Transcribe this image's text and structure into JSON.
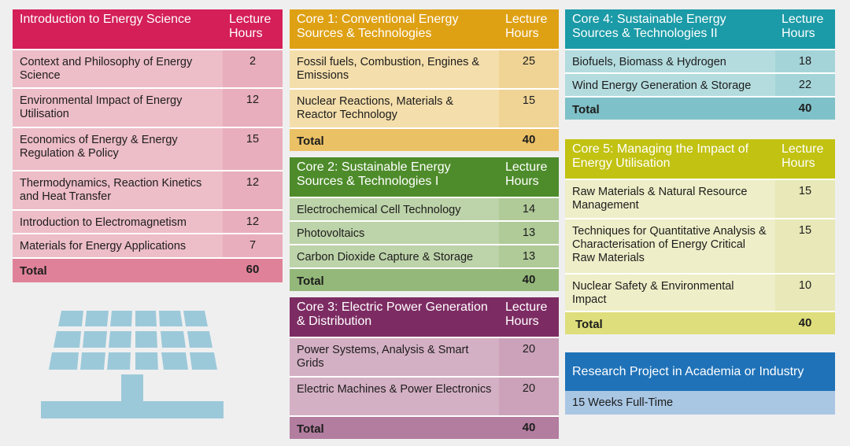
{
  "colors": {
    "intro": "#d41f59",
    "core1": "#dfa114",
    "core2": "#4e8c2b",
    "core3": "#7d2c63",
    "core4": "#1b9ba7",
    "core5": "#c2c212",
    "research": "#1f72b8"
  },
  "intro": {
    "title": "Introduction to Energy Science",
    "hours_label": "Lecture Hours",
    "rows": [
      {
        "name": "Context and Philosophy of Energy Science",
        "hours": "2"
      },
      {
        "name": "Environmental Impact of Energy Utilisation",
        "hours": "12"
      },
      {
        "name": "Economics of Energy & Energy Regulation & Policy",
        "hours": "15"
      },
      {
        "name": "Thermodynamics, Reaction Kinetics and Heat Transfer",
        "hours": "12"
      },
      {
        "name": "Introduction to Electromagnetism",
        "hours": "12"
      },
      {
        "name": "Materials for Energy Applications",
        "hours": "7"
      }
    ],
    "total_label": "Total",
    "total": "60"
  },
  "core1": {
    "title": "Core 1: Conventional Energy Sources & Technologies",
    "hours_label": "Lecture Hours",
    "rows": [
      {
        "name": "Fossil fuels, Combustion, Engines & Emissions",
        "hours": "25"
      },
      {
        "name": "Nuclear Reactions, Materials & Reactor Technology",
        "hours": "15"
      }
    ],
    "total_label": "Total",
    "total": "40"
  },
  "core2": {
    "title": "Core 2: Sustainable Energy Sources & Technologies I",
    "hours_label": "Lecture Hours",
    "rows": [
      {
        "name": "Electrochemical Cell Technology",
        "hours": "14"
      },
      {
        "name": "Photovoltaics",
        "hours": "13"
      },
      {
        "name": "Carbon Dioxide Capture & Storage",
        "hours": "13"
      }
    ],
    "total_label": "Total",
    "total": "40"
  },
  "core3": {
    "title": "Core 3: Electric Power Generation & Distribution",
    "hours_label": "Lecture Hours",
    "rows": [
      {
        "name": "Power Systems, Analysis & Smart Grids",
        "hours": "20"
      },
      {
        "name": "Electric Machines & Power Electronics",
        "hours": "20"
      }
    ],
    "total_label": "Total",
    "total": "40"
  },
  "core4": {
    "title": "Core 4: Sustainable Energy Sources & Technologies II",
    "hours_label": "Lecture Hours",
    "rows": [
      {
        "name": "Biofuels, Biomass & Hydrogen",
        "hours": "18"
      },
      {
        "name": "Wind Energy Generation & Storage",
        "hours": "22"
      }
    ],
    "total_label": "Total",
    "total": "40"
  },
  "core5": {
    "title": "Core 5: Managing the Impact of Energy Utilisation",
    "hours_label": "Lecture Hours",
    "rows": [
      {
        "name": "Raw Materials & Natural Resource Management",
        "hours": "15"
      },
      {
        "name": "Techniques for Quantitative Analysis & Characterisation of Energy Critical Raw Materials",
        "hours": "15"
      },
      {
        "name": "Nuclear Safety & Environmental Impact",
        "hours": "10"
      }
    ],
    "total_label": "Total",
    "total": "40"
  },
  "research": {
    "title": "Research Project in Academia or Industry",
    "subtitle": "15 Weeks Full-Time"
  },
  "icons": {
    "panel": "solar-panel-icon"
  }
}
